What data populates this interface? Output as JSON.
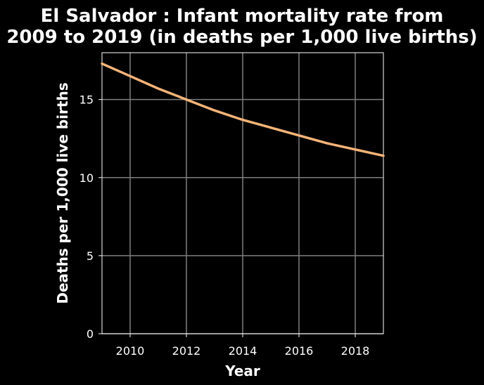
{
  "chart_data": {
    "type": "line",
    "title_lines": [
      "El Salvador : Infant mortality rate from",
      "2009 to 2019 (in deaths per 1,000 live births)"
    ],
    "xlabel": "Year",
    "ylabel": "Deaths per 1,000 live births",
    "xlim": [
      2009,
      2019
    ],
    "ylim": [
      0,
      18
    ],
    "x_ticks": [
      2010,
      2012,
      2014,
      2016,
      2018
    ],
    "y_ticks": [
      0,
      5,
      10,
      15
    ],
    "grid": true,
    "series": [
      {
        "color": "#f5b478",
        "x": [
          2009,
          2010,
          2011,
          2012,
          2013,
          2014,
          2015,
          2016,
          2017,
          2018,
          2019
        ],
        "y": [
          17.3,
          16.5,
          15.7,
          15.0,
          14.3,
          13.7,
          13.2,
          12.7,
          12.2,
          11.8,
          11.4
        ]
      }
    ]
  }
}
